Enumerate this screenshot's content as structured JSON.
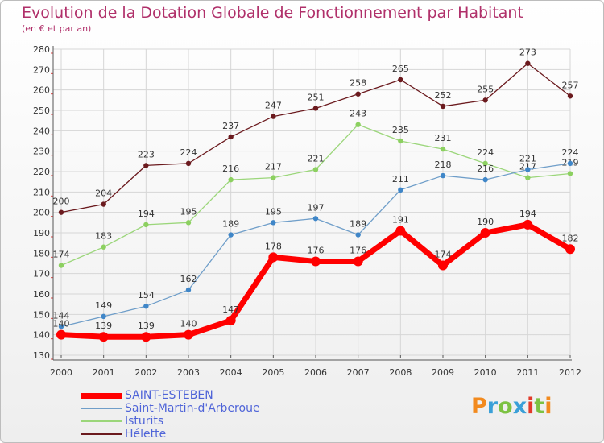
{
  "title": "Evolution de la Dotation Globale de Fonctionnement par Habitant",
  "subtitle": "(en € et par an)",
  "logo": {
    "text": "Proxiti",
    "colors": [
      "#f28a1e",
      "#3aa0d8",
      "#7cc242",
      "#3aa0d8",
      "#e23a2a",
      "#7cc242",
      "#f28a1e"
    ]
  },
  "chart_data": {
    "type": "line",
    "x": [
      "2000",
      "2001",
      "2002",
      "2003",
      "2004",
      "2005",
      "2006",
      "2007",
      "2008",
      "2009",
      "2010",
      "2011",
      "2012"
    ],
    "ylim": [
      130,
      280
    ],
    "yticks": [
      130,
      140,
      150,
      160,
      170,
      180,
      190,
      200,
      210,
      220,
      230,
      240,
      250,
      260,
      270,
      280
    ],
    "grid": true,
    "legend_position": "bottom-left",
    "series": [
      {
        "name": "Hélette",
        "color": "#6b1a1e",
        "values": [
          200,
          204,
          223,
          224,
          237,
          247,
          251,
          258,
          265,
          252,
          255,
          273,
          257
        ]
      },
      {
        "name": "Isturits",
        "color": "#9bd67a",
        "values": [
          174,
          183,
          194,
          195,
          216,
          217,
          221,
          243,
          235,
          231,
          224,
          217,
          219
        ]
      },
      {
        "name": "Saint-Martin-d'Arberoue",
        "color": "#6f9ec9",
        "values": [
          144,
          149,
          154,
          162,
          189,
          195,
          197,
          189,
          211,
          218,
          216,
          221,
          224
        ]
      },
      {
        "name": "SAINT-ESTEBEN",
        "color": "#ff0000",
        "values": [
          140,
          139,
          139,
          140,
          147,
          178,
          176,
          176,
          191,
          174,
          190,
          194,
          182
        ]
      }
    ],
    "legend_order": [
      "SAINT-ESTEBEN",
      "Saint-Martin-d'Arberoue",
      "Isturits",
      "Hélette"
    ]
  }
}
